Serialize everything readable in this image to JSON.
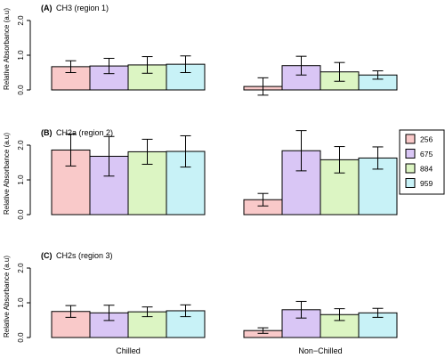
{
  "chart_data": {
    "type": "bar",
    "ylabel": "Relative Absorbance (a.u)",
    "categories": [
      "Chilled",
      "Non−Chilled"
    ],
    "legend": {
      "placement": "right",
      "entries": [
        {
          "name": "256",
          "color": "#f9c9c9"
        },
        {
          "name": "675",
          "color": "#d9c6f5"
        },
        {
          "name": "884",
          "color": "#dcf5c3"
        },
        {
          "name": "959",
          "color": "#c8f2f7"
        }
      ]
    },
    "panels": [
      {
        "tag": "(A)",
        "title": "CH3 (region 1)",
        "ylim": [
          0,
          2.0
        ],
        "yticks": [
          "0.0",
          "1.0",
          "2.0"
        ],
        "ytick_values": [
          0,
          1,
          2
        ],
        "series": [
          {
            "name": "256",
            "values": [
              0.67,
              0.1
            ],
            "err": [
              0.17,
              0.25
            ]
          },
          {
            "name": "675",
            "values": [
              0.69,
              0.7
            ],
            "err": [
              0.22,
              0.27
            ]
          },
          {
            "name": "884",
            "values": [
              0.72,
              0.52
            ],
            "err": [
              0.24,
              0.27
            ]
          },
          {
            "name": "959",
            "values": [
              0.74,
              0.43
            ],
            "err": [
              0.24,
              0.12
            ]
          }
        ]
      },
      {
        "tag": "(B)",
        "title": "CH2a (region 2)",
        "ylim": [
          0,
          2.0
        ],
        "yticks": [
          "0.0",
          "1.0",
          "2.0"
        ],
        "ytick_values": [
          0,
          1,
          2
        ],
        "series": [
          {
            "name": "256",
            "values": [
              1.86,
              0.43
            ],
            "err": [
              0.46,
              0.18
            ]
          },
          {
            "name": "675",
            "values": [
              1.68,
              1.84
            ],
            "err": [
              0.57,
              0.58
            ]
          },
          {
            "name": "884",
            "values": [
              1.81,
              1.58
            ],
            "err": [
              0.36,
              0.38
            ]
          },
          {
            "name": "959",
            "values": [
              1.82,
              1.63
            ],
            "err": [
              0.45,
              0.32
            ]
          }
        ]
      },
      {
        "tag": "(C)",
        "title": "CH2s (region 3)",
        "ylim": [
          0,
          2.0
        ],
        "yticks": [
          "0.0",
          "1.0",
          "2.0"
        ],
        "ytick_values": [
          0,
          1,
          2
        ],
        "series": [
          {
            "name": "256",
            "values": [
              0.75,
              0.2
            ],
            "err": [
              0.17,
              0.08
            ]
          },
          {
            "name": "675",
            "values": [
              0.71,
              0.8
            ],
            "err": [
              0.22,
              0.24
            ]
          },
          {
            "name": "884",
            "values": [
              0.74,
              0.66
            ],
            "err": [
              0.14,
              0.17
            ]
          },
          {
            "name": "959",
            "values": [
              0.77,
              0.71
            ],
            "err": [
              0.17,
              0.13
            ]
          }
        ]
      }
    ]
  }
}
